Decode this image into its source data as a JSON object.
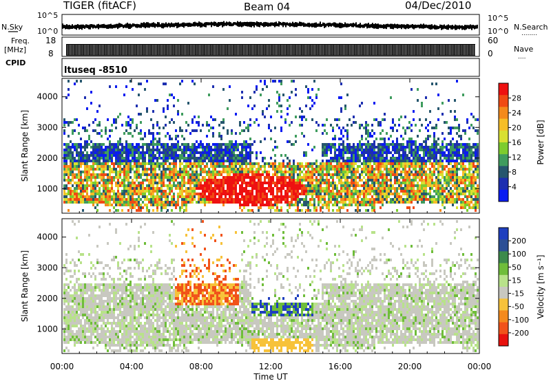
{
  "header": {
    "title": "TIGER (fitACF)",
    "beam": "Beam 04",
    "date": "04/Dec/2010"
  },
  "top_labels": {
    "nsky": "N.Sky",
    "nsearch": "N.Search",
    "freq": "Freq.",
    "mhz": "[MHz]",
    "cpid": "CPID",
    "nave": "Nave",
    "dots1": "........",
    "dots2": "....",
    "ituseq": "ltuseq -8510"
  },
  "top_ticks": {
    "noise_left": [
      "10^5",
      "10^0"
    ],
    "noise_right": [
      "10^5",
      "10^0"
    ],
    "freq_left": [
      "18",
      "8"
    ],
    "nave_right": [
      "60",
      "0"
    ]
  },
  "power_colorbar": {
    "label": "Power [dB]",
    "ticks": [
      "28",
      "24",
      "20",
      "16",
      "12",
      "8",
      "4"
    ],
    "colors": [
      "#ee1111",
      "#f04a14",
      "#f38a1c",
      "#f6be27",
      "#d8e032",
      "#7dcc2e",
      "#3f9c5e",
      "#26566e",
      "#1d2fb0",
      "#0a1cf2"
    ]
  },
  "velocity_colorbar": {
    "label": "Velocity [m s⁻¹]",
    "ticks": [
      "200",
      "100",
      "50",
      "15",
      "-15",
      "-50",
      "-100",
      "-200"
    ],
    "colors": [
      "#1f3fbf",
      "#2c4f95",
      "#3d8a4c",
      "#6fbd3a",
      "#b8e28a",
      "#c8c8c0",
      "#f7c23a",
      "#f48a1d",
      "#f1531a",
      "#e8120e"
    ]
  },
  "chart_data": [
    {
      "type": "heatmap",
      "panel": "power",
      "ylabel": "Slant Range [km]",
      "xlim": [
        "00:00",
        "24:00"
      ],
      "ylim": [
        200,
        4600
      ],
      "yticks": [
        1000,
        2000,
        3000,
        4000
      ],
      "xtick_labels": [
        "00:00",
        "04:00",
        "08:00",
        "12:00",
        "16:00",
        "20:00",
        "00:00"
      ],
      "value_units": "dB",
      "value_range": [
        0,
        30
      ]
    },
    {
      "type": "heatmap",
      "panel": "velocity",
      "ylabel": "Slant Range [km]",
      "xlabel": "Time UT",
      "xlim": [
        "00:00",
        "24:00"
      ],
      "ylim": [
        200,
        4600
      ],
      "yticks": [
        1000,
        2000,
        3000,
        4000
      ],
      "xtick_labels": [
        "00:00",
        "04:00",
        "08:00",
        "12:00",
        "16:00",
        "20:00",
        "00:00"
      ],
      "value_units": "m s-1",
      "value_range": [
        -200,
        200
      ]
    }
  ]
}
